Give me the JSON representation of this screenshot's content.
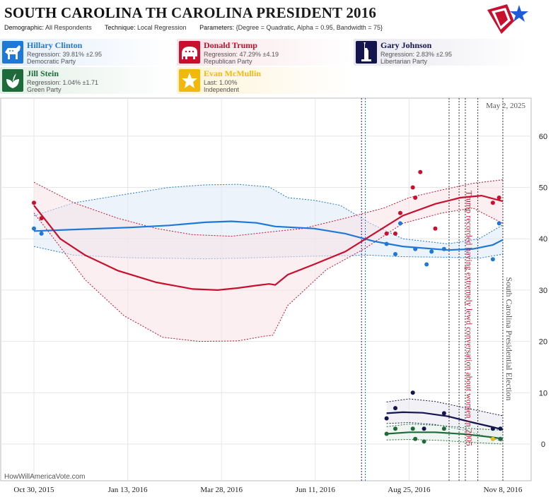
{
  "header": {
    "title_left": "SOUTH CAROLINA",
    "title_right": "TH CAROLINA PRESIDENT 2016",
    "demographic_label": "Demographic:",
    "demographic_value": "All Respondents",
    "technique_label": "Technique:",
    "technique_value": "Local Regression",
    "parameters_label": "Parameters:",
    "parameters_value": "{Degree = Quadratic, Alpha = 0.95, Bandwidth = 75}"
  },
  "candidates": [
    {
      "name": "Hillary Clinton",
      "line2": "Regression: 39.81% ±2.95",
      "line3": "Democratic Party",
      "color": "#1e78d8",
      "icon": "donkey-icon"
    },
    {
      "name": "Donald Trump",
      "line2": "Regression: 47.29% ±4.19",
      "line3": "Republican Party",
      "color": "#c8102e",
      "icon": "elephant-icon"
    },
    {
      "name": "Gary Johnson",
      "line2": "Regression: 2.83% ±2.95",
      "line3": "Libertarian Party",
      "color": "#14144e",
      "icon": "liberty-statue-icon"
    },
    {
      "name": "Jill Stein",
      "line2": "Regression: 1.04% ±1.71",
      "line3": "Green Party",
      "color": "#1d6b3a",
      "icon": "green-leaf-icon"
    },
    {
      "name": "Evan McMullin",
      "line2": "Last: 1.00%",
      "line3": "Independent",
      "color": "#f2b90c",
      "icon": "star-icon"
    }
  ],
  "chart_data": {
    "type": "line",
    "date_label": "May 2, 2025",
    "watermark": "HowWillAmericaVote.com",
    "x_ticks": [
      "Oct 30, 2015",
      "Jan 13, 2016",
      "Mar 28, 2016",
      "Jun 11, 2016",
      "Aug 25, 2016",
      "Nov 8, 2016"
    ],
    "y_ticks": [
      "0",
      "10",
      "20",
      "30",
      "40",
      "50",
      "60"
    ],
    "ylim": [
      0,
      65
    ],
    "xlim": [
      "2015-10-30",
      "2016-11-08"
    ],
    "annotations": [
      {
        "date": "2016-10-07",
        "text": "Trump recorded having extremely lewd conversation about women in 2005",
        "color": "#c8102e"
      },
      {
        "date": "2016-11-08",
        "text": "South Carolina Presidential Election",
        "color": "#555555"
      }
    ],
    "event_lines": [
      {
        "date": "2016-07-18",
        "color": "#1a1a8a"
      },
      {
        "date": "2016-07-21",
        "color": "#1e78d8"
      },
      {
        "date": "2016-09-26",
        "color": "#333333"
      },
      {
        "date": "2016-10-04",
        "color": "#333333"
      },
      {
        "date": "2016-10-09",
        "color": "#333333"
      },
      {
        "date": "2016-10-19",
        "color": "#333333"
      },
      {
        "date": "2016-11-08",
        "color": "#333333"
      }
    ],
    "series": [
      {
        "name": "Hillary Clinton",
        "color": "#1e78d8",
        "band_color": "#dfe9f7",
        "points": [
          [
            "2015-10-30",
            42
          ],
          [
            "2015-11-05",
            41
          ],
          [
            "2016-08-07",
            39
          ],
          [
            "2016-08-14",
            37
          ],
          [
            "2016-08-18",
            43
          ],
          [
            "2016-08-30",
            38
          ],
          [
            "2016-09-08",
            35
          ],
          [
            "2016-09-12",
            37.5
          ],
          [
            "2016-09-22",
            38
          ],
          [
            "2016-10-31",
            36
          ],
          [
            "2016-11-05",
            43
          ]
        ],
        "line": [
          [
            "2015-10-30",
            41.5
          ],
          [
            "2015-12-01",
            41.8
          ],
          [
            "2016-01-15",
            42.2
          ],
          [
            "2016-02-15",
            42.6
          ],
          [
            "2016-03-15",
            43.2
          ],
          [
            "2016-04-05",
            43.4
          ],
          [
            "2016-04-25",
            43.1
          ],
          [
            "2016-05-10",
            42.4
          ],
          [
            "2016-06-10",
            42
          ],
          [
            "2016-07-05",
            41
          ],
          [
            "2016-07-28",
            39.5
          ],
          [
            "2016-08-20",
            38.5
          ],
          [
            "2016-09-25",
            37.8
          ],
          [
            "2016-10-15",
            38
          ],
          [
            "2016-10-31",
            38.8
          ],
          [
            "2016-11-08",
            39.8
          ]
        ],
        "upper": [
          [
            "2015-10-30",
            44.5
          ],
          [
            "2015-12-01",
            47
          ],
          [
            "2016-01-15",
            48.8
          ],
          [
            "2016-02-15",
            50
          ],
          [
            "2016-03-15",
            50.5
          ],
          [
            "2016-04-10",
            50.6
          ],
          [
            "2016-05-05",
            50.1
          ],
          [
            "2016-05-20",
            48
          ],
          [
            "2016-06-10",
            47.5
          ],
          [
            "2016-07-01",
            46.5
          ],
          [
            "2016-07-25",
            43
          ],
          [
            "2016-08-20",
            40
          ],
          [
            "2016-09-25",
            39
          ],
          [
            "2016-10-20",
            40
          ],
          [
            "2016-11-08",
            42.7
          ]
        ],
        "lower": [
          [
            "2015-10-30",
            38.5
          ],
          [
            "2015-12-01",
            36.8
          ],
          [
            "2016-01-15",
            36.3
          ],
          [
            "2016-02-15",
            36.2
          ],
          [
            "2016-03-15",
            36.1
          ],
          [
            "2016-04-10",
            36.2
          ],
          [
            "2016-05-05",
            36.4
          ],
          [
            "2016-06-10",
            36.6
          ],
          [
            "2016-07-25",
            36.8
          ],
          [
            "2016-08-20",
            36.5
          ],
          [
            "2016-09-25",
            36.4
          ],
          [
            "2016-10-20",
            36.2
          ],
          [
            "2016-11-08",
            37
          ]
        ]
      },
      {
        "name": "Donald Trump",
        "color": "#c8102e",
        "band_color": "#f7e1e6",
        "points": [
          [
            "2015-10-30",
            47
          ],
          [
            "2015-11-05",
            44
          ],
          [
            "2016-08-07",
            41
          ],
          [
            "2016-08-14",
            41
          ],
          [
            "2016-08-18",
            45
          ],
          [
            "2016-08-30",
            48
          ],
          [
            "2016-08-28",
            50
          ],
          [
            "2016-09-03",
            53
          ],
          [
            "2016-09-15",
            42
          ],
          [
            "2016-10-31",
            47
          ],
          [
            "2016-11-05",
            48
          ]
        ],
        "line": [
          [
            "2015-10-30",
            46.5
          ],
          [
            "2015-11-20",
            40
          ],
          [
            "2015-12-10",
            36.8
          ],
          [
            "2016-01-05",
            33.8
          ],
          [
            "2016-02-05",
            31.5
          ],
          [
            "2016-03-05",
            30.2
          ],
          [
            "2016-03-25",
            30
          ],
          [
            "2016-04-10",
            30.4
          ],
          [
            "2016-04-25",
            30.9
          ],
          [
            "2016-05-05",
            31.2
          ],
          [
            "2016-05-10",
            31
          ],
          [
            "2016-05-20",
            33
          ],
          [
            "2016-06-10",
            35
          ],
          [
            "2016-07-05",
            37.5
          ],
          [
            "2016-07-28",
            41
          ],
          [
            "2016-08-20",
            44.5
          ],
          [
            "2016-09-15",
            46.8
          ],
          [
            "2016-10-05",
            48
          ],
          [
            "2016-10-22",
            48.4
          ],
          [
            "2016-11-08",
            47.3
          ]
        ],
        "upper": [
          [
            "2015-10-30",
            51
          ],
          [
            "2015-12-01",
            47
          ],
          [
            "2016-01-05",
            44
          ],
          [
            "2016-02-05",
            42
          ],
          [
            "2016-03-05",
            40.8
          ],
          [
            "2016-04-05",
            40.5
          ],
          [
            "2016-05-05",
            41.3
          ],
          [
            "2016-06-01",
            42
          ],
          [
            "2016-07-05",
            44
          ],
          [
            "2016-08-05",
            46
          ],
          [
            "2016-08-25",
            48
          ],
          [
            "2016-09-20",
            49.5
          ],
          [
            "2016-10-15",
            50.8
          ],
          [
            "2016-11-08",
            51.5
          ]
        ],
        "lower": [
          [
            "2015-10-30",
            45
          ],
          [
            "2015-11-15",
            40
          ],
          [
            "2015-12-10",
            32
          ],
          [
            "2016-01-10",
            25
          ],
          [
            "2016-02-10",
            20.8
          ],
          [
            "2016-03-10",
            20
          ],
          [
            "2016-04-10",
            20.1
          ],
          [
            "2016-05-01",
            21
          ],
          [
            "2016-05-08",
            21.2
          ],
          [
            "2016-05-20",
            27
          ],
          [
            "2016-06-20",
            34
          ],
          [
            "2016-07-20",
            38
          ],
          [
            "2016-08-20",
            43
          ],
          [
            "2016-09-20",
            45
          ],
          [
            "2016-10-15",
            46
          ],
          [
            "2016-11-08",
            43
          ]
        ]
      },
      {
        "name": "Gary Johnson",
        "color": "#14144e",
        "band_color": "#e5e5ef",
        "points": [
          [
            "2016-08-07",
            5
          ],
          [
            "2016-08-14",
            7
          ],
          [
            "2016-08-28",
            10
          ],
          [
            "2016-09-06",
            3
          ],
          [
            "2016-09-22",
            6
          ],
          [
            "2016-10-31",
            3
          ],
          [
            "2016-11-06",
            3
          ]
        ],
        "line": [
          [
            "2016-08-07",
            6
          ],
          [
            "2016-08-20",
            6.2
          ],
          [
            "2016-09-05",
            6.1
          ],
          [
            "2016-09-25",
            5.4
          ],
          [
            "2016-10-15",
            4.2
          ],
          [
            "2016-10-31",
            3.3
          ],
          [
            "2016-11-08",
            2.8
          ]
        ],
        "upper": [
          [
            "2016-08-07",
            8.2
          ],
          [
            "2016-08-25",
            8.8
          ],
          [
            "2016-09-15",
            8.3
          ],
          [
            "2016-10-10",
            7
          ],
          [
            "2016-11-08",
            5.5
          ]
        ],
        "lower": [
          [
            "2016-08-07",
            4
          ],
          [
            "2016-08-25",
            4.2
          ],
          [
            "2016-09-15",
            3.8
          ],
          [
            "2016-10-10",
            2.6
          ],
          [
            "2016-11-08",
            0.5
          ]
        ]
      },
      {
        "name": "Jill Stein",
        "color": "#1d6b3a",
        "band_color": "#e3efe6",
        "points": [
          [
            "2016-08-07",
            2
          ],
          [
            "2016-08-14",
            3
          ],
          [
            "2016-08-28",
            3
          ],
          [
            "2016-08-30",
            1
          ],
          [
            "2016-09-06",
            0.5
          ],
          [
            "2016-09-22",
            3
          ],
          [
            "2016-10-31",
            1
          ],
          [
            "2016-11-06",
            1
          ]
        ],
        "line": [
          [
            "2016-08-07",
            2
          ],
          [
            "2016-08-25",
            2.3
          ],
          [
            "2016-09-15",
            2.3
          ],
          [
            "2016-10-10",
            1.9
          ],
          [
            "2016-10-31",
            1.3
          ],
          [
            "2016-11-08",
            1
          ]
        ],
        "upper": [
          [
            "2016-08-07",
            3.4
          ],
          [
            "2016-08-25",
            3.9
          ],
          [
            "2016-09-20",
            3.6
          ],
          [
            "2016-10-15",
            3
          ],
          [
            "2016-11-08",
            2.7
          ]
        ],
        "lower": [
          [
            "2016-08-07",
            0.8
          ],
          [
            "2016-08-25",
            0.9
          ],
          [
            "2016-09-20",
            0.7
          ],
          [
            "2016-10-15",
            0.3
          ],
          [
            "2016-11-08",
            0
          ]
        ]
      },
      {
        "name": "Evan McMullin",
        "color": "#f2b90c",
        "band_color": "#fdf5dc",
        "points": [
          [
            "2016-10-31",
            1
          ]
        ],
        "line": [],
        "upper": [],
        "lower": []
      }
    ]
  }
}
